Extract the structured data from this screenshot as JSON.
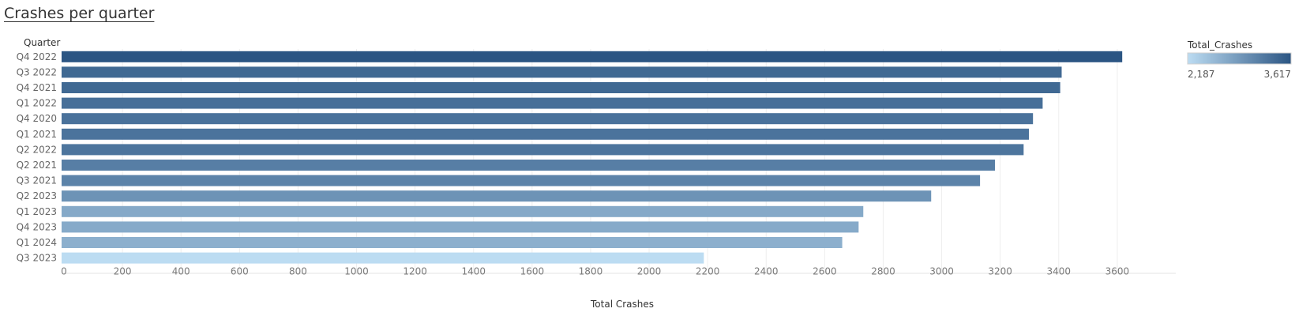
{
  "title": "Crashes per quarter",
  "chart_data": {
    "type": "bar",
    "orientation": "horizontal",
    "title": "Crashes per quarter",
    "category_axis_title": "Quarter",
    "xlabel": "Total Crashes",
    "categories": [
      "Q4 2022",
      "Q3 2022",
      "Q4 2021",
      "Q1 2022",
      "Q4 2020",
      "Q1 2021",
      "Q2 2022",
      "Q2 2021",
      "Q3 2021",
      "Q2 2023",
      "Q1 2023",
      "Q4 2023",
      "Q1 2024",
      "Q3 2023"
    ],
    "values": [
      3617,
      3410,
      3405,
      3345,
      3312,
      3298,
      3280,
      3182,
      3131,
      2964,
      2732,
      2716,
      2660,
      2187
    ],
    "xlim": [
      0,
      3800
    ],
    "xticks": [
      0,
      200,
      400,
      600,
      800,
      1000,
      1200,
      1400,
      1600,
      1800,
      2000,
      2200,
      2400,
      2600,
      2800,
      3000,
      3200,
      3400,
      3600
    ],
    "grid": "vertical",
    "legend": {
      "title": "Total_Crashes",
      "type": "color-gradient",
      "min_label": "2,187",
      "max_label": "3,617",
      "min": 2187,
      "max": 3617,
      "color_low": "#bcdcf2",
      "color_high": "#2b5583",
      "placement": "top-right"
    }
  }
}
